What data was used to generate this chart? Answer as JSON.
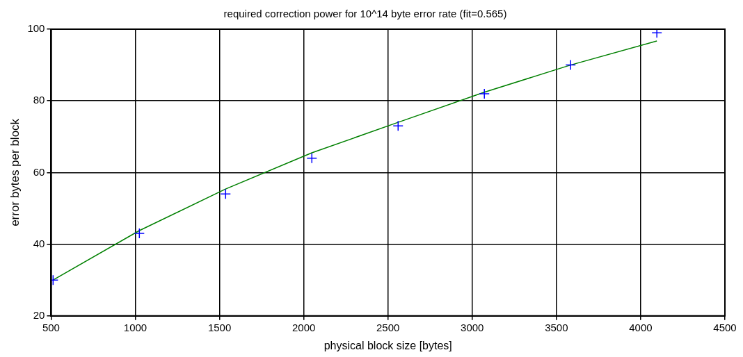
{
  "chart_data": {
    "type": "scatter",
    "title": "required correction power for 10^14 byte error rate (fit=0.565)",
    "xlabel": "physical block size [bytes]",
    "ylabel": "error bytes per block",
    "x": [
      512,
      1024,
      1536,
      2048,
      2560,
      3072,
      3584,
      4096
    ],
    "series": [
      {
        "type": "scatter",
        "color": "#0000ff",
        "marker": "cross",
        "values": [
          30,
          43,
          54,
          64,
          73,
          82,
          90,
          99
        ]
      },
      {
        "type": "line",
        "color": "#008000",
        "marker": "none",
        "line_style": "solid",
        "values": [
          30,
          43.8,
          55.4,
          65.5,
          74,
          82.4,
          90,
          96.7
        ]
      }
    ],
    "xlim": [
      500,
      4500
    ],
    "xticks": [
      500,
      1000,
      1500,
      2000,
      2500,
      3000,
      3500,
      4000,
      4500
    ],
    "ylim": [
      20,
      100
    ],
    "yticks": [
      20,
      40,
      60,
      80,
      100
    ],
    "grid": true,
    "legend": false
  }
}
